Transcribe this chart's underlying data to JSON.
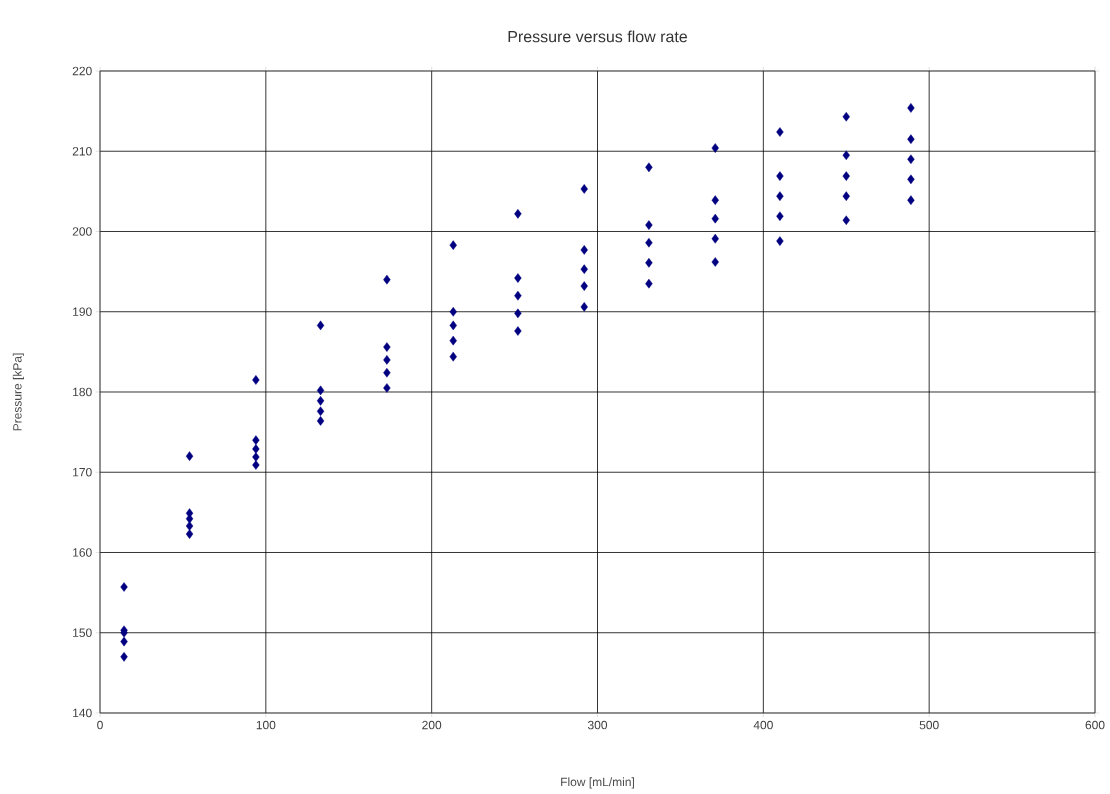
{
  "chart_data": {
    "type": "scatter",
    "title": "Pressure versus flow rate",
    "xlabel": "Flow [mL/min]",
    "ylabel": "Pressure [kPa]",
    "x": [
      14.5,
      14.5,
      14.5,
      14.5,
      14.5,
      54,
      54,
      54,
      54,
      54,
      94,
      94,
      94,
      94,
      94,
      133,
      133,
      133,
      133,
      133,
      173,
      173,
      173,
      173,
      173,
      213,
      213,
      213,
      213,
      213,
      252,
      252,
      252,
      252,
      252,
      292,
      292,
      292,
      292,
      292,
      331,
      331,
      331,
      331,
      331,
      371,
      371,
      371,
      371,
      371,
      410,
      410,
      410,
      410,
      410,
      450,
      450,
      450,
      450,
      450,
      489,
      489,
      489,
      489,
      489
    ],
    "series": [
      {
        "color": "#000080",
        "values": [
          155.7,
          150.3,
          150.0,
          148.9,
          147.0,
          172.0,
          164.9,
          164.2,
          163.3,
          162.3,
          181.5,
          174.0,
          172.9,
          171.9,
          170.9,
          188.3,
          180.2,
          178.9,
          177.6,
          176.4,
          194.0,
          185.6,
          184.0,
          182.4,
          180.5,
          198.3,
          190.0,
          188.3,
          186.4,
          184.4,
          202.2,
          194.2,
          192.0,
          189.8,
          187.6,
          205.3,
          197.7,
          195.3,
          193.2,
          190.6,
          208.0,
          200.8,
          198.6,
          196.1,
          193.5,
          210.4,
          203.9,
          201.6,
          199.1,
          196.2,
          212.4,
          206.9,
          204.4,
          201.9,
          198.8,
          214.3,
          209.5,
          206.9,
          204.4,
          201.4,
          215.4,
          211.5,
          209.0,
          206.5,
          203.9
        ]
      }
    ],
    "xlim": [
      0,
      600
    ],
    "ylim": [
      140,
      220
    ],
    "xticks": [
      0,
      100,
      200,
      300,
      400,
      500,
      600
    ],
    "yticks": [
      140,
      150,
      160,
      170,
      180,
      190,
      200,
      210,
      220
    ],
    "grid": true,
    "marker": "diamond"
  }
}
